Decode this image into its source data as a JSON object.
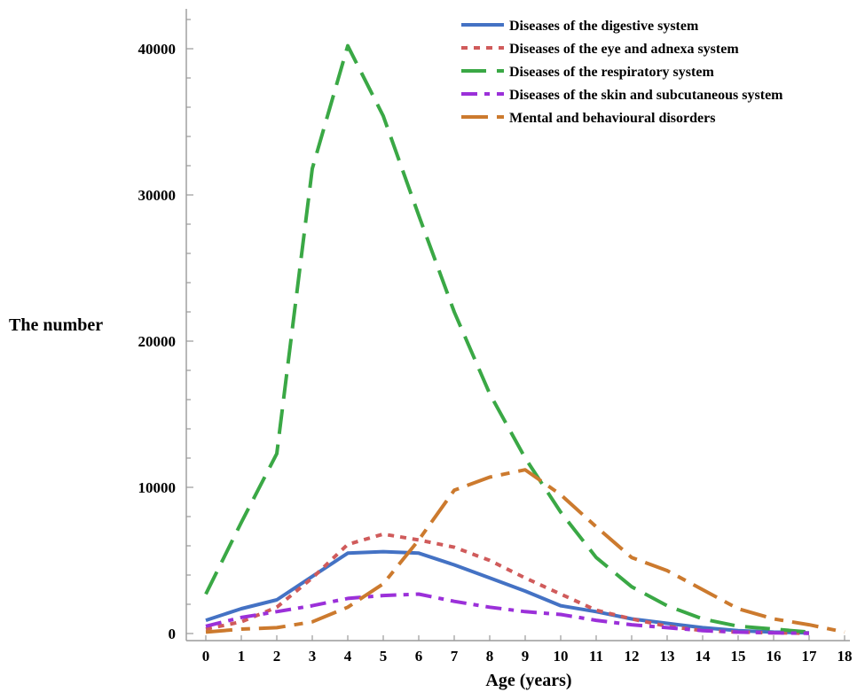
{
  "chart_data": {
    "type": "line",
    "xlabel": "Age (years)",
    "ylabel": "The number",
    "x": [
      0,
      1,
      2,
      3,
      4,
      5,
      6,
      7,
      8,
      9,
      10,
      11,
      12,
      13,
      14,
      15,
      16,
      17,
      18
    ],
    "xticks": [
      "0",
      "1",
      "2",
      "3",
      "4",
      "5",
      "6",
      "7",
      "8",
      "9",
      "10",
      "11",
      "12",
      "13",
      "14",
      "15",
      "16",
      "17",
      "18"
    ],
    "ylim": [
      0,
      43000
    ],
    "yticks": [
      "0",
      "10000",
      "20000",
      "30000",
      "40000"
    ],
    "yticks_values": [
      0,
      10000,
      20000,
      30000,
      40000
    ],
    "legend_position": "top-right",
    "grid": false,
    "series": [
      {
        "name": "Diseases of the digestive system",
        "color": "#4472c4",
        "dash": "solid",
        "values": [
          900,
          1700,
          2300,
          3900,
          5500,
          5600,
          5500,
          4700,
          3800,
          2900,
          1900,
          1500,
          1000,
          700,
          400,
          200,
          100,
          50,
          null
        ]
      },
      {
        "name": "Diseases of the eye and adnexa system",
        "color": "#d05b5b",
        "dash": "dot",
        "values": [
          300,
          800,
          1800,
          3800,
          6100,
          6800,
          6400,
          5900,
          5000,
          3800,
          2700,
          1600,
          1000,
          500,
          200,
          100,
          50,
          20,
          null
        ]
      },
      {
        "name": "Diseases of the respiratory system",
        "color": "#3aa845",
        "dash": "longdash",
        "values": [
          2700,
          7600,
          12300,
          31800,
          40200,
          35400,
          28600,
          22000,
          16400,
          12000,
          8300,
          5200,
          3200,
          1900,
          1000,
          500,
          300,
          100,
          null
        ]
      },
      {
        "name": "Diseases of the skin and subcutaneous system",
        "color": "#9b30d9",
        "dash": "dashdot",
        "values": [
          500,
          1100,
          1500,
          1900,
          2400,
          2600,
          2700,
          2200,
          1800,
          1500,
          1300,
          900,
          600,
          400,
          200,
          100,
          50,
          20,
          null
        ]
      },
      {
        "name": "Mental and behavioural disorders",
        "color": "#cc7a2e",
        "dash": "dashdotlong",
        "values": [
          100,
          300,
          400,
          800,
          1800,
          3400,
          6400,
          9800,
          10700,
          11200,
          9500,
          7300,
          5200,
          4300,
          3000,
          1700,
          1000,
          600,
          100
        ]
      }
    ]
  }
}
